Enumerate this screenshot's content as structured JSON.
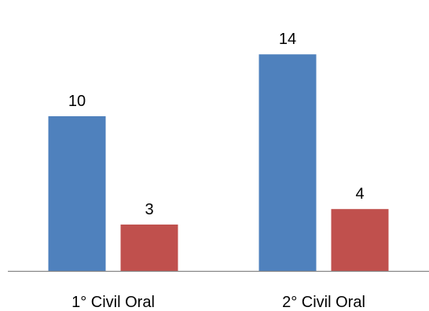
{
  "chart_data": {
    "type": "bar",
    "categories": [
      "1° Civil Oral",
      "2° Civil Oral"
    ],
    "series": [
      {
        "values": [
          10,
          14
        ],
        "color": "#4f81bd"
      },
      {
        "values": [
          3,
          4
        ],
        "color": "#c0504d"
      }
    ],
    "ylim": [
      0,
      16.5
    ],
    "grid": false,
    "legend": "none",
    "data_labels": true,
    "axis_color": "#868686"
  }
}
